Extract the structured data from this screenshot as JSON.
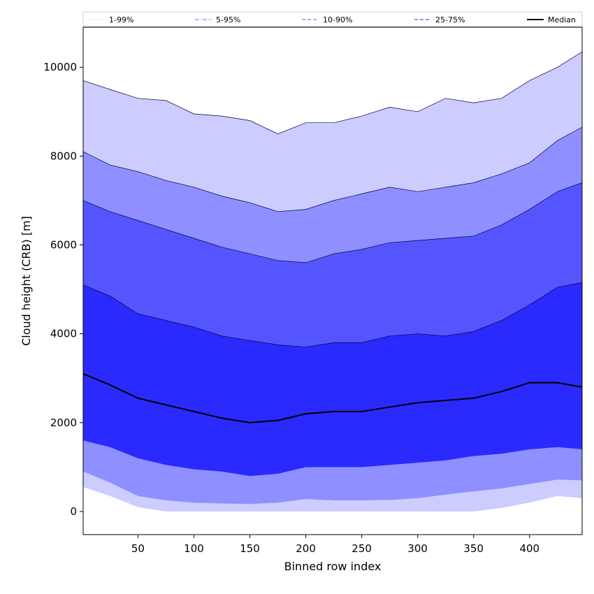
{
  "chart_data": {
    "type": "area",
    "title": "",
    "xlabel": "Binned row index",
    "ylabel": "Cloud height (CRB) [m]",
    "xlim": [
      1,
      447
    ],
    "ylim": [
      -520,
      10900
    ],
    "x_ticks": [
      50,
      100,
      150,
      200,
      250,
      300,
      350,
      400
    ],
    "y_ticks": [
      0,
      2000,
      4000,
      6000,
      8000,
      10000
    ],
    "grid": false,
    "legend_position": "top",
    "x": [
      1,
      25,
      50,
      75,
      100,
      125,
      150,
      175,
      200,
      225,
      250,
      275,
      300,
      325,
      350,
      375,
      400,
      425,
      447
    ],
    "bands": [
      {
        "name": "1-99%",
        "color": "#ccccff",
        "linestyle": "dotted",
        "lower": [
          550,
          350,
          100,
          0,
          0,
          0,
          0,
          0,
          0,
          0,
          0,
          0,
          0,
          0,
          0,
          80,
          200,
          350,
          300
        ],
        "upper": [
          9700,
          9500,
          9300,
          9250,
          8950,
          8900,
          8800,
          8500,
          8750,
          8750,
          8900,
          9100,
          9000,
          9300,
          9200,
          9300,
          9700,
          10000,
          10350
        ]
      },
      {
        "name": "5-95%",
        "color": "#8f8fff",
        "linestyle": "dashdot",
        "lower": [
          900,
          650,
          350,
          250,
          200,
          180,
          170,
          200,
          280,
          250,
          250,
          260,
          300,
          380,
          450,
          520,
          620,
          720,
          700
        ],
        "upper": [
          8100,
          7800,
          7650,
          7450,
          7300,
          7100,
          6950,
          6750,
          6800,
          7000,
          7150,
          7300,
          7200,
          7300,
          7400,
          7600,
          7850,
          8350,
          8650
        ]
      },
      {
        "name": "10-90%",
        "color": "#5555ff",
        "linestyle": "dashed",
        "lower": [
          1600,
          1450,
          1200,
          1050,
          950,
          900,
          800,
          850,
          1000,
          1000,
          1000,
          1050,
          1100,
          1150,
          1250,
          1300,
          1400,
          1450,
          1400
        ],
        "upper": [
          7000,
          6750,
          6550,
          6350,
          6150,
          5950,
          5800,
          5650,
          5600,
          5800,
          5900,
          6050,
          6100,
          6150,
          6200,
          6450,
          6800,
          7200,
          7400
        ]
      },
      {
        "name": "25-75%",
        "color": "#2a2aff",
        "linestyle": "dashed",
        "lower": [
          1600,
          1450,
          1200,
          1050,
          950,
          900,
          800,
          850,
          1000,
          1000,
          1000,
          1050,
          1100,
          1150,
          1250,
          1300,
          1400,
          1450,
          1400
        ],
        "upper": [
          5100,
          4850,
          4450,
          4300,
          4150,
          3950,
          3850,
          3750,
          3700,
          3800,
          3800,
          3950,
          4000,
          3950,
          4050,
          4300,
          4650,
          5050,
          5150
        ]
      }
    ],
    "median": {
      "name": "Median",
      "color": "#000000",
      "values": [
        3100,
        2850,
        2550,
        2400,
        2250,
        2100,
        2000,
        2050,
        2200,
        2250,
        2250,
        2350,
        2450,
        2500,
        2550,
        2700,
        2900,
        2900,
        2800
      ]
    }
  }
}
